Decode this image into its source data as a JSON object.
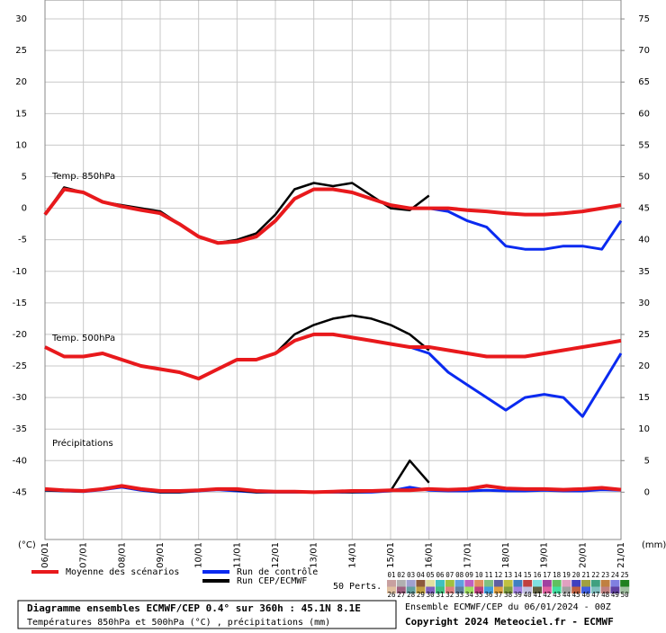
{
  "chart_data": {
    "type": "line",
    "x": [
      0,
      0.5,
      1,
      1.5,
      2,
      2.5,
      3,
      3.5,
      4,
      4.5,
      5,
      5.5,
      6,
      6.5,
      7,
      7.5,
      8,
      8.5,
      9,
      9.5,
      10,
      10.5,
      11,
      11.5,
      12,
      12.5,
      13,
      13.5,
      14,
      14.5,
      15
    ],
    "xlim": [
      0,
      15
    ],
    "xticks": [
      {
        "value": 0,
        "label": "06/01"
      },
      {
        "value": 1,
        "label": "07/01"
      },
      {
        "value": 2,
        "label": "08/01"
      },
      {
        "value": 3,
        "label": "09/01"
      },
      {
        "value": 4,
        "label": "10/01"
      },
      {
        "value": 5,
        "label": "11/01"
      },
      {
        "value": 6,
        "label": "12/01"
      },
      {
        "value": 7,
        "label": "13/01"
      },
      {
        "value": 8,
        "label": "14/01"
      },
      {
        "value": 9,
        "label": "15/01"
      },
      {
        "value": 10,
        "label": "16/01"
      },
      {
        "value": 11,
        "label": "17/01"
      },
      {
        "value": 12,
        "label": "18/01"
      },
      {
        "value": 13,
        "label": "19/01"
      },
      {
        "value": 14,
        "label": "20/01"
      },
      {
        "value": 15,
        "label": "21/01"
      }
    ],
    "ylim": [
      -52.5,
      33
    ],
    "yticks": [
      30,
      25,
      20,
      15,
      10,
      5,
      0,
      -5,
      -10,
      -15,
      -20,
      -25,
      -30,
      -35,
      -40,
      -45
    ],
    "y2lim": [
      -7.5,
      78
    ],
    "y2ticks": [
      75,
      70,
      65,
      60,
      55,
      50,
      45,
      40,
      35,
      30,
      25,
      20,
      15,
      10,
      5,
      0
    ],
    "ylabel": "(°C)",
    "y2label": "(mm)",
    "grid": true,
    "panels": [
      {
        "label": "Temp. 850hPa",
        "axis": "y"
      },
      {
        "label": "Temp. 500hPa",
        "axis": "y"
      },
      {
        "label": "Précipitations",
        "axis": "y2"
      }
    ],
    "series": [
      {
        "name": "Moyenne des scénarios",
        "color": "#e8191c",
        "values": [
          [
            -1,
            3,
            2.5,
            1,
            0.3,
            -0.3,
            -0.8,
            -2.5,
            -4.5,
            -5.5,
            -5.3,
            -4.5,
            -2,
            1.5,
            3,
            3,
            2.5,
            1.5,
            0.5,
            0,
            0,
            0,
            -0.3,
            -0.5,
            -0.8,
            -1,
            -1,
            -0.8,
            -0.5,
            0,
            0.5
          ],
          [
            -22,
            -23.5,
            -23.5,
            -23,
            -24,
            -25,
            -25.5,
            -26,
            -27,
            -25.5,
            -24,
            -24,
            -23,
            -21,
            -20,
            -20,
            -20.5,
            -21,
            -21.5,
            -22,
            -22,
            -22.5,
            -23,
            -23.5,
            -23.5,
            -23.5,
            -23,
            -22.5,
            -22,
            -21.5,
            -21
          ],
          [
            0.5,
            0.3,
            0.2,
            0.5,
            1,
            0.5,
            0.2,
            0.2,
            0.3,
            0.5,
            0.5,
            0.2,
            0.1,
            0.1,
            0,
            0.1,
            0.2,
            0.2,
            0.3,
            0.3,
            0.5,
            0.4,
            0.5,
            1,
            0.6,
            0.5,
            0.5,
            0.4,
            0.5,
            0.7,
            0.4
          ]
        ]
      },
      {
        "name": "Run de contrôle",
        "color": "#0a2af0",
        "values": [
          [
            -1,
            3,
            2.5,
            1,
            0.3,
            -0.3,
            -0.8,
            -2.5,
            -4.5,
            -5.5,
            -5.3,
            -4.5,
            -2,
            1.5,
            3,
            3,
            2.5,
            1.5,
            0.5,
            0,
            0,
            -0.5,
            -2,
            -3,
            -6,
            -6.5,
            -6.5,
            -6,
            -6,
            -6.5,
            -2
          ],
          [
            -22,
            -23.5,
            -23.5,
            -23,
            -24,
            -25,
            -25.5,
            -26,
            -27,
            -25.5,
            -24,
            -24,
            -23,
            -21,
            -20,
            -20,
            -20.5,
            -21,
            -21.5,
            -22,
            -23,
            -26,
            -28,
            -30,
            -32,
            -30,
            -29.5,
            -30,
            -33,
            -28,
            -23
          ],
          [
            0.3,
            0.2,
            0.1,
            0.4,
            0.8,
            0.3,
            0,
            0,
            0.2,
            0.4,
            0.2,
            0,
            0,
            0,
            0,
            0,
            0,
            0,
            0.2,
            0.8,
            0.3,
            0.2,
            0.2,
            0.3,
            0.2,
            0.2,
            0.3,
            0.2,
            0.2,
            0.4,
            0.3
          ]
        ]
      },
      {
        "name": "Run CEP/ECMWF",
        "color": "#000000",
        "values": [
          [
            -1,
            3.3,
            2.5,
            1,
            0.5,
            0,
            -0.5,
            -2.5,
            -4.5,
            -5.5,
            -5,
            -4,
            -1,
            3,
            4,
            3.5,
            4,
            2,
            0,
            -0.3,
            2,
            null,
            null,
            null,
            null,
            null,
            null,
            null,
            null,
            null,
            null
          ],
          [
            -22,
            -23.5,
            -23.5,
            -23,
            -24,
            -25,
            -25.5,
            -26,
            -27,
            -25.5,
            -24,
            -24,
            -23,
            -20,
            -18.5,
            -17.5,
            -17,
            -17.5,
            -18.5,
            -20,
            -22.5,
            null,
            null,
            null,
            null,
            null,
            null,
            null,
            null,
            null,
            null
          ],
          [
            0.3,
            0.2,
            0.1,
            0.5,
            0.9,
            0.4,
            0,
            0,
            0.2,
            0.5,
            0.3,
            0,
            0,
            0,
            0,
            0,
            0,
            0.1,
            0.2,
            5,
            1.5,
            null,
            null,
            null,
            null,
            null,
            null,
            null,
            null,
            null,
            null
          ]
        ]
      }
    ],
    "perturbations_label": "50 Perts.",
    "perturbations": [
      "01",
      "02",
      "03",
      "04",
      "05",
      "06",
      "07",
      "08",
      "09",
      "10",
      "11",
      "12",
      "13",
      "14",
      "15",
      "16",
      "17",
      "18",
      "19",
      "20",
      "21",
      "22",
      "23",
      "24",
      "25",
      "26",
      "27",
      "28",
      "29",
      "30",
      "31",
      "32",
      "33",
      "34",
      "35",
      "36",
      "37",
      "38",
      "39",
      "40",
      "41",
      "42",
      "43",
      "44",
      "45",
      "46",
      "47",
      "48",
      "49",
      "50"
    ],
    "perturbation_colors": [
      "#c8a0a0",
      "#b0b0b0",
      "#a0a0d0",
      "#8c5a3c",
      "#e0e0a0",
      "#40c0c0",
      "#a0c040",
      "#60a0e0",
      "#c060c0",
      "#e09060",
      "#80c080",
      "#6060a0",
      "#c0c040",
      "#4080c0",
      "#c04040",
      "#80e0e0",
      "#a040a0",
      "#60c060",
      "#e0a0c0",
      "#4040c0",
      "#a0a040",
      "#40a080",
      "#c08040",
      "#8080e0",
      "#208020",
      "#e0c0a0",
      "#a06080",
      "#60a0a0",
      "#c0a040",
      "#8060c0",
      "#40c080",
      "#e08080",
      "#6080a0",
      "#a0e060",
      "#c04080",
      "#40a0e0",
      "#e0a040",
      "#80a040",
      "#a080e0",
      "#c0c0e0",
      "#606040",
      "#e060a0",
      "#40e0a0",
      "#a0a0a0",
      "#c06040",
      "#4060e0",
      "#80c0c0",
      "#c08080",
      "#6040a0",
      "#a0c0a0"
    ],
    "footer_title": "Diagramme ensembles ECMWF/CEP 0.4° sur 360h : 45.1N 8.1E",
    "footer_subtitle": "Températures 850hPa et 500hPa (°C) , précipitations (mm)",
    "run_info": "Ensemble ECMWF/CEP du 06/01/2024 - 00Z",
    "copyright": "Copyright 2024 Meteociel.fr - ECMWF"
  }
}
